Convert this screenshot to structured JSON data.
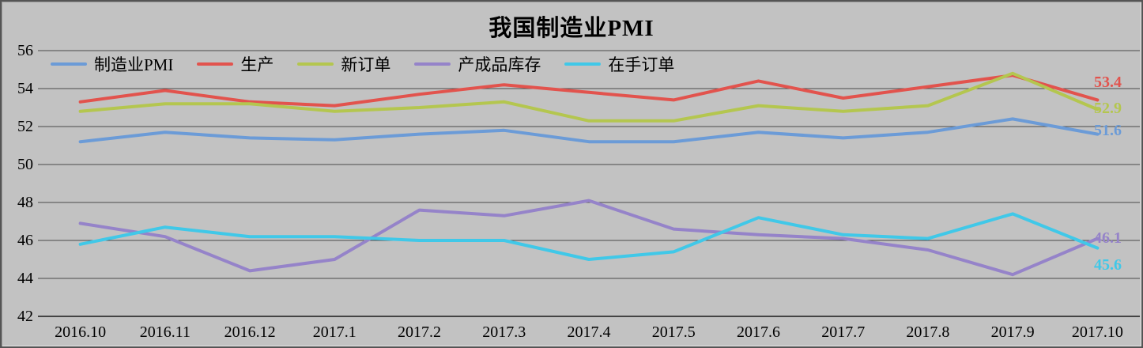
{
  "title": "我国制造业PMI",
  "chart_data": {
    "type": "line",
    "title": "我国制造业PMI",
    "categories": [
      "2016.10",
      "2016.11",
      "2016.12",
      "2017.1",
      "2017.2",
      "2017.3",
      "2017.4",
      "2017.5",
      "2017.6",
      "2017.7",
      "2017.8",
      "2017.9",
      "2017.10"
    ],
    "ylim": [
      42,
      56
    ],
    "yticks": [
      56,
      54,
      52,
      50,
      48,
      46,
      44,
      42
    ],
    "ytick_step": 2,
    "grid": true,
    "legend_position": "top-left",
    "background_color": "#c2c2c2",
    "series": [
      {
        "name": "制造业PMI",
        "color": "#6b9bd7",
        "end_label": "51.6",
        "values": [
          51.2,
          51.7,
          51.4,
          51.3,
          51.6,
          51.8,
          51.2,
          51.2,
          51.7,
          51.4,
          51.7,
          52.4,
          51.6
        ]
      },
      {
        "name": "生产",
        "color": "#e2534d",
        "end_label": "53.4",
        "values": [
          53.3,
          53.9,
          53.3,
          53.1,
          53.7,
          54.2,
          53.8,
          53.4,
          54.4,
          53.5,
          54.1,
          54.7,
          53.4
        ]
      },
      {
        "name": "新订单",
        "color": "#b4c64f",
        "end_label": "52.9",
        "values": [
          52.8,
          53.2,
          53.2,
          52.8,
          53.0,
          53.3,
          52.3,
          52.3,
          53.1,
          52.8,
          53.1,
          54.8,
          52.9
        ]
      },
      {
        "name": "产成品库存",
        "color": "#9583c9",
        "end_label": "46.1",
        "values": [
          46.9,
          46.2,
          44.4,
          45.0,
          47.6,
          47.3,
          48.1,
          46.6,
          46.3,
          46.1,
          45.5,
          44.2,
          46.1
        ]
      },
      {
        "name": "在手订单",
        "color": "#40c8e8",
        "end_label": "45.6",
        "values": [
          45.8,
          46.7,
          46.2,
          46.2,
          46.0,
          46.0,
          45.0,
          45.4,
          47.2,
          46.3,
          46.1,
          47.4,
          45.6
        ]
      }
    ]
  }
}
